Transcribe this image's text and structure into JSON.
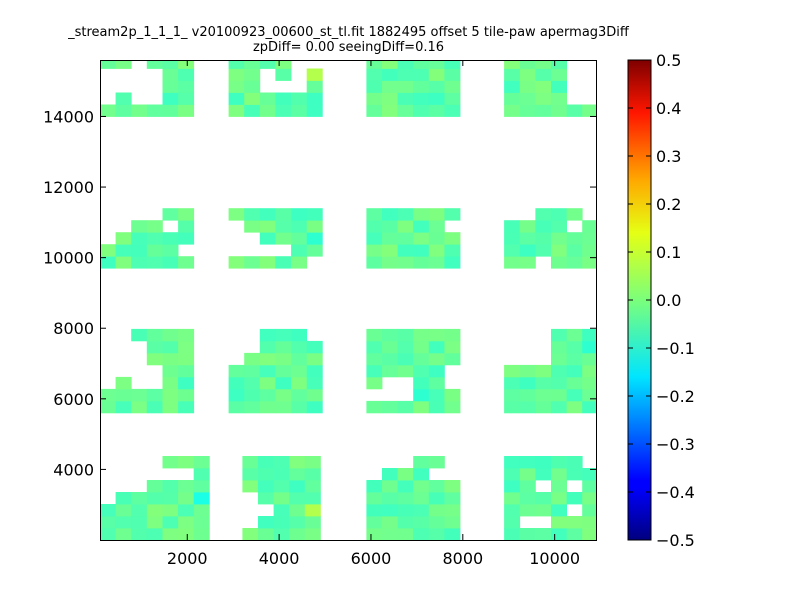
{
  "chart_data": {
    "type": "heatmap",
    "title": "_stream2p_1_1_1_ v20100923_00600_st_tl.fit 1882495 offset 5 tile-paw apermag3Diff",
    "subtitle": "zpDiff= 0.00 seeingDiff=0.16",
    "xlim": [
      100,
      10900
    ],
    "ylim": [
      2000,
      15600
    ],
    "x_ticks": [
      2000,
      4000,
      6000,
      8000,
      10000
    ],
    "x_tick_labels": [
      "2000",
      "4000",
      "6000",
      "8000",
      "10000"
    ],
    "y_ticks": [
      4000,
      6000,
      8000,
      10000,
      12000,
      14000
    ],
    "y_tick_labels": [
      "4000",
      "6000",
      "8000",
      "10000",
      "12000",
      "14000"
    ],
    "colorbar": {
      "min": -0.5,
      "max": 0.5,
      "colormap": "jet",
      "ticks": [
        0.5,
        0.4,
        0.3,
        0.2,
        0.1,
        0.0,
        -0.1,
        -0.2,
        -0.3,
        -0.4,
        -0.5
      ],
      "tick_labels": [
        "0.5",
        "0.4",
        "0.3",
        "0.2",
        "0.1",
        "0.0",
        "−0.1",
        "−0.2",
        "−0.3",
        "−0.4",
        "−0.5"
      ]
    },
    "cell_size": 340,
    "grid_origin": [
      100,
      2000
    ],
    "hot_cells": [
      {
        "col": 2,
        "row": 31,
        "value": -0.32
      },
      {
        "col": 10,
        "row": 31,
        "value": -0.1
      },
      {
        "col": 4,
        "row": 32,
        "value": -0.12
      },
      {
        "col": 5,
        "row": 32,
        "value": -0.1
      },
      {
        "col": 6,
        "row": 3,
        "value": -0.1
      },
      {
        "col": 13,
        "row": 25,
        "value": -0.08
      },
      {
        "col": 8,
        "row": 7,
        "value": 0.06
      },
      {
        "col": 8,
        "row": 42,
        "value": 0.08
      },
      {
        "col": 13,
        "row": 38,
        "value": 0.05
      },
      {
        "col": 23,
        "row": 48,
        "value": 0.06
      },
      {
        "col": 25,
        "row": 30,
        "value": 0.05
      },
      {
        "col": 19,
        "row": 13,
        "value": -0.08
      },
      {
        "col": 20,
        "row": 12,
        "value": -0.08
      },
      {
        "col": 31,
        "row": 16,
        "value": -0.08
      },
      {
        "col": 31,
        "row": 9,
        "value": -0.05
      },
      {
        "col": 13,
        "row": 2,
        "value": 0.05
      }
    ],
    "blocks": [
      {
        "x0": 100,
        "x1": 2200,
        "y0": 14000,
        "y1": 15600,
        "holes": [
          [
            0,
            1
          ],
          [
            0,
            2
          ],
          [
            0,
            3
          ],
          [
            1,
            1
          ],
          [
            1,
            2
          ],
          [
            2,
            0
          ],
          [
            2,
            1
          ],
          [
            2,
            2
          ],
          [
            2,
            3
          ],
          [
            3,
            1
          ],
          [
            3,
            2
          ],
          [
            3,
            3
          ]
        ]
      },
      {
        "x0": 2900,
        "x1": 5000,
        "y0": 14000,
        "y1": 15600,
        "holes": [
          [
            2,
            1
          ],
          [
            2,
            2
          ],
          [
            3,
            2
          ],
          [
            4,
            0
          ],
          [
            4,
            1
          ],
          [
            4,
            2
          ],
          [
            5,
            0
          ]
        ]
      },
      {
        "x0": 5900,
        "x1": 8000,
        "y0": 14000,
        "y1": 15600,
        "holes": []
      },
      {
        "x0": 8900,
        "x1": 10900,
        "y0": 14000,
        "y1": 15600,
        "holes": [
          [
            4,
            0
          ],
          [
            4,
            1
          ],
          [
            4,
            2
          ],
          [
            4,
            3
          ],
          [
            5,
            0
          ],
          [
            5,
            1
          ],
          [
            5,
            2
          ],
          [
            5,
            3
          ]
        ]
      },
      {
        "x0": 100,
        "x1": 2200,
        "y0": 9700,
        "y1": 11300,
        "holes": [
          [
            0,
            0
          ],
          [
            0,
            1
          ],
          [
            0,
            2
          ],
          [
            1,
            0
          ],
          [
            1,
            1
          ],
          [
            2,
            0
          ],
          [
            4,
            1
          ],
          [
            3,
            0
          ],
          [
            5,
            3
          ]
        ]
      },
      {
        "x0": 2900,
        "x1": 5000,
        "y0": 9700,
        "y1": 11300,
        "holes": [
          [
            0,
            1
          ],
          [
            0,
            2
          ],
          [
            0,
            3
          ],
          [
            1,
            2
          ],
          [
            1,
            3
          ],
          [
            2,
            3
          ],
          [
            3,
            3
          ],
          [
            5,
            4
          ]
        ]
      },
      {
        "x0": 5900,
        "x1": 8000,
        "y0": 9700,
        "y1": 11300,
        "holes": [
          [
            5,
            1
          ]
        ]
      },
      {
        "x0": 8900,
        "x1": 10900,
        "y0": 9700,
        "y1": 11300,
        "holes": [
          [
            0,
            0
          ],
          [
            1,
            0
          ],
          [
            2,
            4
          ],
          [
            4,
            1
          ],
          [
            5,
            0
          ]
        ]
      },
      {
        "x0": 100,
        "x1": 2200,
        "y0": 5600,
        "y1": 7900,
        "holes": [
          [
            0,
            0
          ],
          [
            0,
            1
          ],
          [
            0,
            2
          ],
          [
            0,
            3
          ],
          [
            0,
            4
          ],
          [
            1,
            0
          ],
          [
            1,
            1
          ],
          [
            1,
            2
          ],
          [
            1,
            3
          ],
          [
            2,
            1
          ],
          [
            2,
            2
          ],
          [
            2,
            3
          ],
          [
            2,
            4
          ],
          [
            3,
            3
          ],
          [
            3,
            4
          ]
        ]
      },
      {
        "x0": 2900,
        "x1": 5000,
        "y0": 5600,
        "y1": 7900,
        "holes": [
          [
            0,
            0
          ],
          [
            0,
            1
          ],
          [
            0,
            2
          ],
          [
            1,
            0
          ],
          [
            1,
            1
          ],
          [
            5,
            0
          ]
        ]
      },
      {
        "x0": 5900,
        "x1": 8000,
        "y0": 5600,
        "y1": 7900,
        "holes": [
          [
            0,
            5
          ],
          [
            1,
            5
          ],
          [
            1,
            4
          ],
          [
            2,
            4
          ],
          [
            2,
            5
          ],
          [
            5,
            3
          ],
          [
            5,
            4
          ]
        ]
      },
      {
        "x0": 8900,
        "x1": 10900,
        "y0": 5600,
        "y1": 7900,
        "holes": [
          [
            0,
            0
          ],
          [
            0,
            1
          ],
          [
            0,
            2
          ],
          [
            1,
            0
          ],
          [
            1,
            1
          ],
          [
            1,
            2
          ],
          [
            2,
            0
          ],
          [
            2,
            1
          ],
          [
            2,
            2
          ]
        ]
      },
      {
        "x0": 100,
        "x1": 2500,
        "y0": 2000,
        "y1": 4300,
        "holes": [
          [
            0,
            0
          ],
          [
            0,
            1
          ],
          [
            0,
            2
          ],
          [
            0,
            3
          ],
          [
            1,
            0
          ],
          [
            1,
            1
          ],
          [
            1,
            2
          ],
          [
            2,
            0
          ],
          [
            2,
            1
          ],
          [
            2,
            2
          ],
          [
            3,
            0
          ],
          [
            3,
            1
          ],
          [
            4,
            1
          ],
          [
            5,
            1
          ]
        ]
      },
      {
        "x0": 3200,
        "x1": 5000,
        "y0": 2000,
        "y1": 4300,
        "holes": [
          [
            0,
            5
          ],
          [
            0,
            3
          ],
          [
            0,
            4
          ],
          [
            1,
            4
          ]
        ]
      },
      {
        "x0": 5900,
        "x1": 8000,
        "y0": 2000,
        "y1": 4300,
        "holes": [
          [
            0,
            0
          ],
          [
            0,
            1
          ],
          [
            1,
            0
          ],
          [
            2,
            0
          ],
          [
            5,
            1
          ],
          [
            4,
            1
          ],
          [
            5,
            0
          ]
        ]
      },
      {
        "x0": 8900,
        "x1": 10900,
        "y0": 2000,
        "y1": 4300,
        "holes": [
          [
            1,
            5
          ],
          [
            2,
            5
          ],
          [
            2,
            2
          ],
          [
            4,
            2
          ],
          [
            5,
            0
          ],
          [
            4,
            4
          ]
        ]
      }
    ]
  }
}
